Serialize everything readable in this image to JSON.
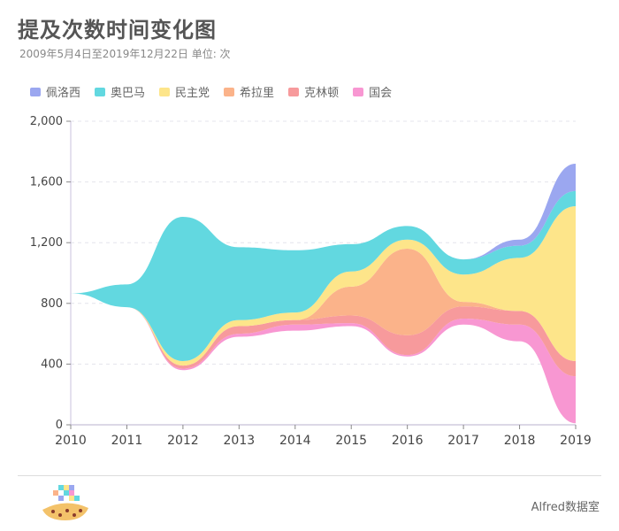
{
  "header": {
    "title": "提及次数时间变化图",
    "subtitle": "2009年5月4日至2019年12月22日 单位: 次"
  },
  "footer": {
    "brand": "Alfred数据室"
  },
  "chart_data": {
    "type": "area",
    "subtype": "streamgraph",
    "title": "提及次数时间变化图",
    "subtitle": "2009年5月4日至2019年12月22日 单位: 次",
    "x": [
      2010,
      2011,
      2012,
      2013,
      2014,
      2015,
      2016,
      2017,
      2018,
      2019
    ],
    "xlabel": "",
    "ylabel": "",
    "ylim": [
      0,
      2000
    ],
    "yticks": [
      0,
      400,
      800,
      1200,
      1600,
      2000
    ],
    "ytick_labels": [
      "0",
      "400",
      "800",
      "1,200",
      "1,600",
      "2,000"
    ],
    "grid": true,
    "legend_position": "top-left",
    "stack_order_bottom_to_top": [
      "国会",
      "克林顿",
      "希拉里",
      "民主党",
      "奥巴马",
      "佩洛西"
    ],
    "series": [
      {
        "name": "佩洛西",
        "color": "#9ba7f0",
        "values": [
          0,
          0,
          0,
          0,
          0,
          0,
          0,
          0,
          40,
          180
        ]
      },
      {
        "name": "奥巴马",
        "color": "#62d8e0",
        "values": [
          0,
          150,
          950,
          480,
          410,
          180,
          90,
          100,
          80,
          100
        ]
      },
      {
        "name": "民主党",
        "color": "#fde58a",
        "values": [
          0,
          0,
          30,
          40,
          50,
          100,
          60,
          180,
          350,
          1020
        ]
      },
      {
        "name": "希拉里",
        "color": "#fbb38a",
        "values": [
          0,
          0,
          0,
          0,
          0,
          190,
          570,
          30,
          0,
          0
        ]
      },
      {
        "name": "克林顿",
        "color": "#f79a9c",
        "values": [
          0,
          0,
          20,
          50,
          30,
          50,
          130,
          80,
          90,
          100
        ]
      },
      {
        "name": "国会",
        "color": "#f897d2",
        "values": [
          0,
          0,
          10,
          20,
          40,
          20,
          10,
          40,
          110,
          310
        ]
      }
    ],
    "baseline": [
      866,
      775,
      360,
      580,
      620,
      650,
      450,
      660,
      550,
      10
    ]
  }
}
